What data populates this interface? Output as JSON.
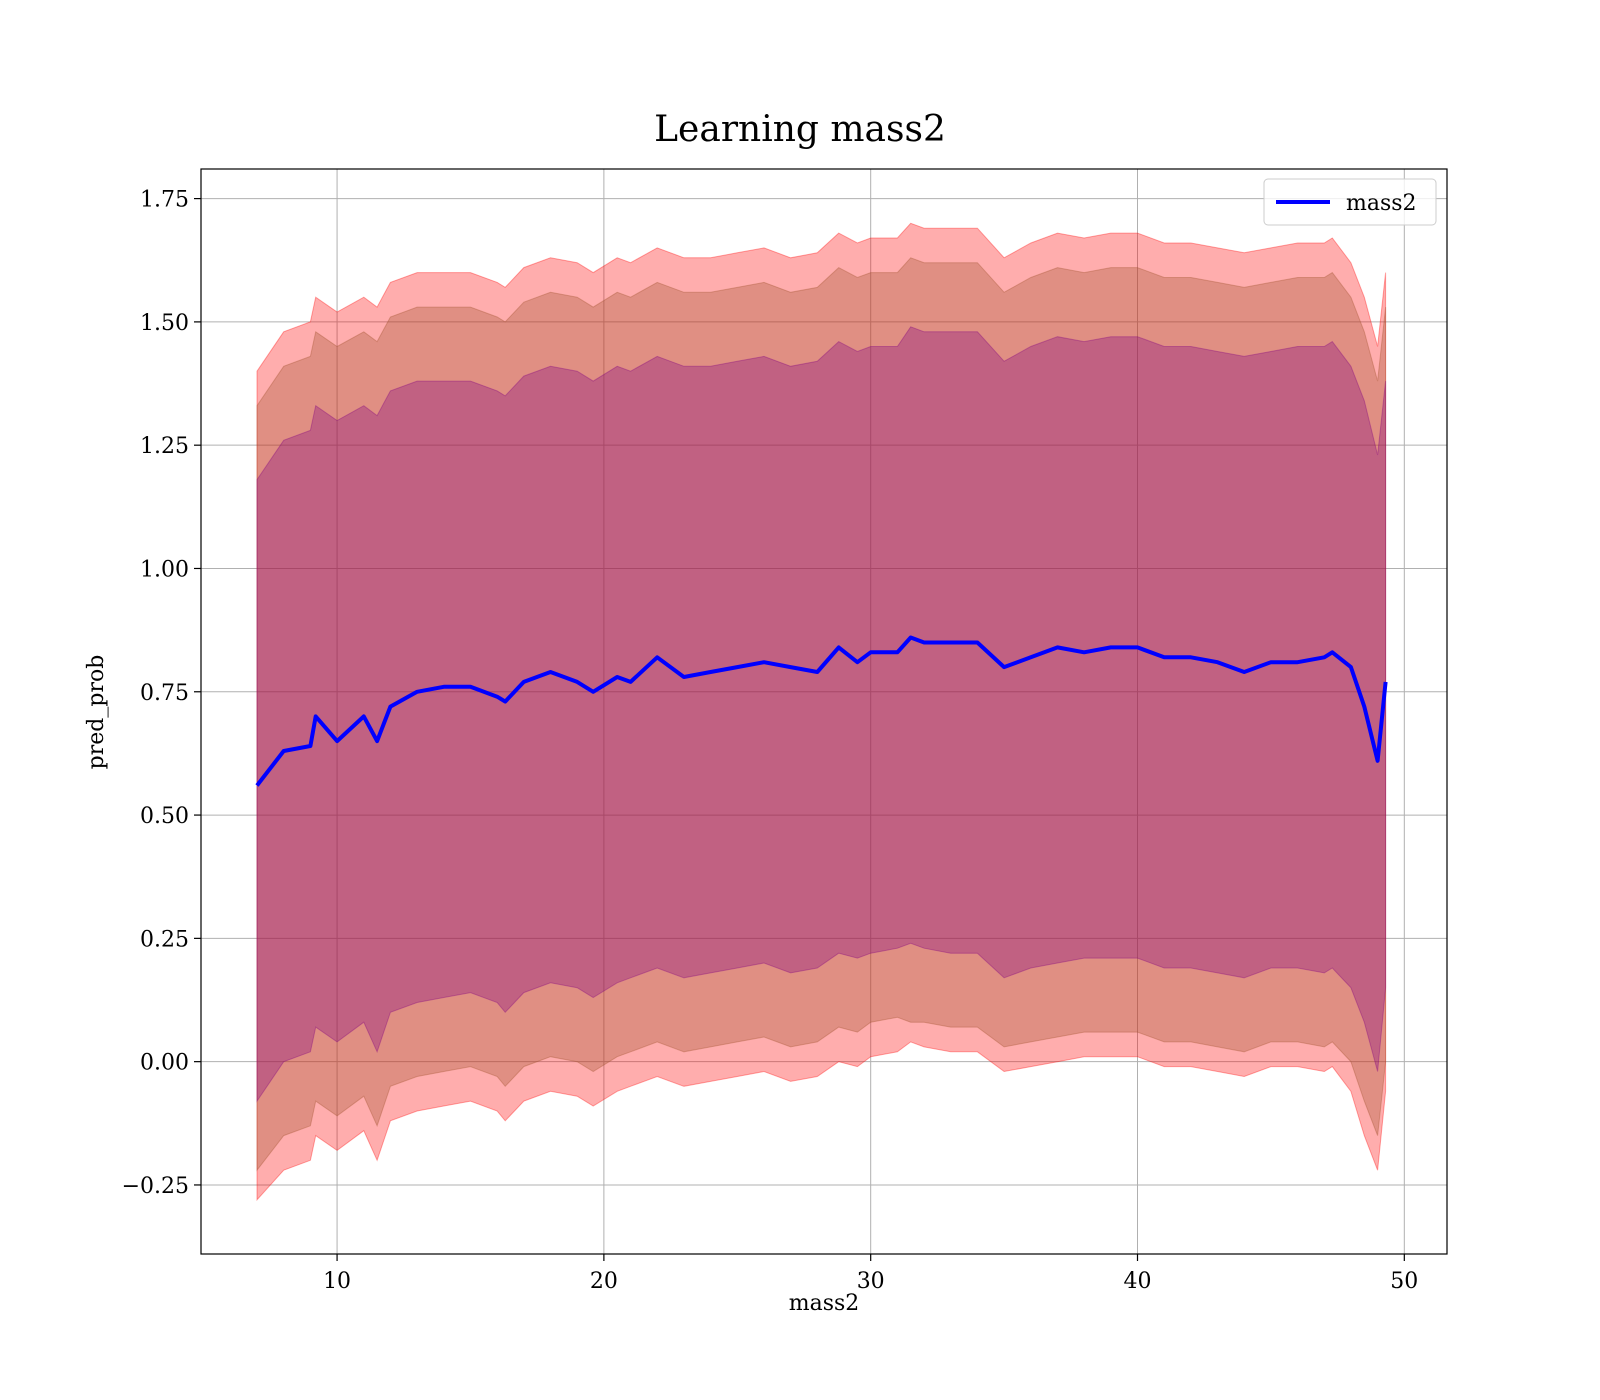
{
  "chart_data": {
    "type": "area",
    "title": "Learning mass2",
    "xlabel": "mass2",
    "ylabel": "pred_prob",
    "xlim": [
      4.9,
      51.6
    ],
    "ylim": [
      -0.39,
      1.81
    ],
    "xticks": [
      10,
      20,
      30,
      40,
      50
    ],
    "yticks": [
      -0.25,
      0.0,
      0.25,
      0.5,
      0.75,
      1.0,
      1.25,
      1.5,
      1.75
    ],
    "grid": true,
    "legend": {
      "position": "top-right",
      "entries": [
        "mass2"
      ]
    },
    "colors": {
      "line": "#0000ff",
      "band_outer": "#ff0000",
      "band_middle": "#a0522d",
      "band_inner": "#800080"
    },
    "x": [
      7.0,
      8.0,
      9.0,
      9.2,
      10.0,
      11.0,
      11.5,
      12.0,
      13.0,
      14.0,
      15.0,
      16.0,
      16.3,
      17.0,
      18.0,
      19.0,
      19.6,
      20.5,
      21.0,
      22.0,
      23.0,
      24.0,
      25.0,
      26.0,
      27.0,
      28.0,
      28.8,
      29.5,
      30.0,
      31.0,
      31.5,
      32.0,
      33.0,
      34.0,
      35.0,
      36.0,
      37.0,
      38.0,
      39.0,
      40.0,
      41.0,
      42.0,
      43.0,
      44.0,
      45.0,
      46.0,
      47.0,
      47.3,
      48.0,
      48.5,
      49.0,
      49.3
    ],
    "series": [
      {
        "name": "mass2",
        "values": [
          0.56,
          0.63,
          0.64,
          0.7,
          0.65,
          0.7,
          0.65,
          0.72,
          0.75,
          0.76,
          0.76,
          0.74,
          0.73,
          0.77,
          0.79,
          0.77,
          0.75,
          0.78,
          0.77,
          0.82,
          0.78,
          0.79,
          0.8,
          0.81,
          0.8,
          0.79,
          0.84,
          0.81,
          0.83,
          0.83,
          0.86,
          0.85,
          0.85,
          0.85,
          0.8,
          0.82,
          0.84,
          0.83,
          0.84,
          0.84,
          0.82,
          0.82,
          0.81,
          0.79,
          0.81,
          0.81,
          0.82,
          0.83,
          0.8,
          0.72,
          0.61,
          0.77
        ]
      }
    ],
    "bands": [
      {
        "upper": [
          1.4,
          1.48,
          1.5,
          1.55,
          1.52,
          1.55,
          1.53,
          1.58,
          1.6,
          1.6,
          1.6,
          1.58,
          1.57,
          1.61,
          1.63,
          1.62,
          1.6,
          1.63,
          1.62,
          1.65,
          1.63,
          1.63,
          1.64,
          1.65,
          1.63,
          1.64,
          1.68,
          1.66,
          1.67,
          1.67,
          1.7,
          1.69,
          1.69,
          1.69,
          1.63,
          1.66,
          1.68,
          1.67,
          1.68,
          1.68,
          1.66,
          1.66,
          1.65,
          1.64,
          1.65,
          1.66,
          1.66,
          1.67,
          1.62,
          1.55,
          1.45,
          1.6
        ],
        "lower": [
          -0.28,
          -0.22,
          -0.2,
          -0.15,
          -0.18,
          -0.14,
          -0.2,
          -0.12,
          -0.1,
          -0.09,
          -0.08,
          -0.1,
          -0.12,
          -0.08,
          -0.06,
          -0.07,
          -0.09,
          -0.06,
          -0.05,
          -0.03,
          -0.05,
          -0.04,
          -0.03,
          -0.02,
          -0.04,
          -0.03,
          0.0,
          -0.01,
          0.01,
          0.02,
          0.04,
          0.03,
          0.02,
          0.02,
          -0.02,
          -0.01,
          0.0,
          0.01,
          0.01,
          0.01,
          -0.01,
          -0.01,
          -0.02,
          -0.03,
          -0.01,
          -0.01,
          -0.02,
          -0.01,
          -0.06,
          -0.15,
          -0.22,
          -0.06
        ]
      },
      {
        "upper": [
          1.33,
          1.41,
          1.43,
          1.48,
          1.45,
          1.48,
          1.46,
          1.51,
          1.53,
          1.53,
          1.53,
          1.51,
          1.5,
          1.54,
          1.56,
          1.55,
          1.53,
          1.56,
          1.55,
          1.58,
          1.56,
          1.56,
          1.57,
          1.58,
          1.56,
          1.57,
          1.61,
          1.59,
          1.6,
          1.6,
          1.63,
          1.62,
          1.62,
          1.62,
          1.56,
          1.59,
          1.61,
          1.6,
          1.61,
          1.61,
          1.59,
          1.59,
          1.58,
          1.57,
          1.58,
          1.59,
          1.59,
          1.6,
          1.55,
          1.48,
          1.38,
          1.53
        ],
        "lower": [
          -0.22,
          -0.15,
          -0.13,
          -0.08,
          -0.11,
          -0.07,
          -0.13,
          -0.05,
          -0.03,
          -0.02,
          -0.01,
          -0.03,
          -0.05,
          -0.01,
          0.01,
          0.0,
          -0.02,
          0.01,
          0.02,
          0.04,
          0.02,
          0.03,
          0.04,
          0.05,
          0.03,
          0.04,
          0.07,
          0.06,
          0.08,
          0.09,
          0.08,
          0.08,
          0.07,
          0.07,
          0.03,
          0.04,
          0.05,
          0.06,
          0.06,
          0.06,
          0.04,
          0.04,
          0.03,
          0.02,
          0.04,
          0.04,
          0.03,
          0.04,
          0.0,
          -0.08,
          -0.15,
          0.0
        ]
      },
      {
        "upper": [
          1.18,
          1.26,
          1.28,
          1.33,
          1.3,
          1.33,
          1.31,
          1.36,
          1.38,
          1.38,
          1.38,
          1.36,
          1.35,
          1.39,
          1.41,
          1.4,
          1.38,
          1.41,
          1.4,
          1.43,
          1.41,
          1.41,
          1.42,
          1.43,
          1.41,
          1.42,
          1.46,
          1.44,
          1.45,
          1.45,
          1.49,
          1.48,
          1.48,
          1.48,
          1.42,
          1.45,
          1.47,
          1.46,
          1.47,
          1.47,
          1.45,
          1.45,
          1.44,
          1.43,
          1.44,
          1.45,
          1.45,
          1.46,
          1.41,
          1.34,
          1.23,
          1.38
        ],
        "lower": [
          -0.08,
          0.0,
          0.02,
          0.07,
          0.04,
          0.08,
          0.02,
          0.1,
          0.12,
          0.13,
          0.14,
          0.12,
          0.1,
          0.14,
          0.16,
          0.15,
          0.13,
          0.16,
          0.17,
          0.19,
          0.17,
          0.18,
          0.19,
          0.2,
          0.18,
          0.19,
          0.22,
          0.21,
          0.22,
          0.23,
          0.24,
          0.23,
          0.22,
          0.22,
          0.17,
          0.19,
          0.2,
          0.21,
          0.21,
          0.21,
          0.19,
          0.19,
          0.18,
          0.17,
          0.19,
          0.19,
          0.18,
          0.19,
          0.15,
          0.08,
          -0.02,
          0.15
        ]
      }
    ]
  }
}
